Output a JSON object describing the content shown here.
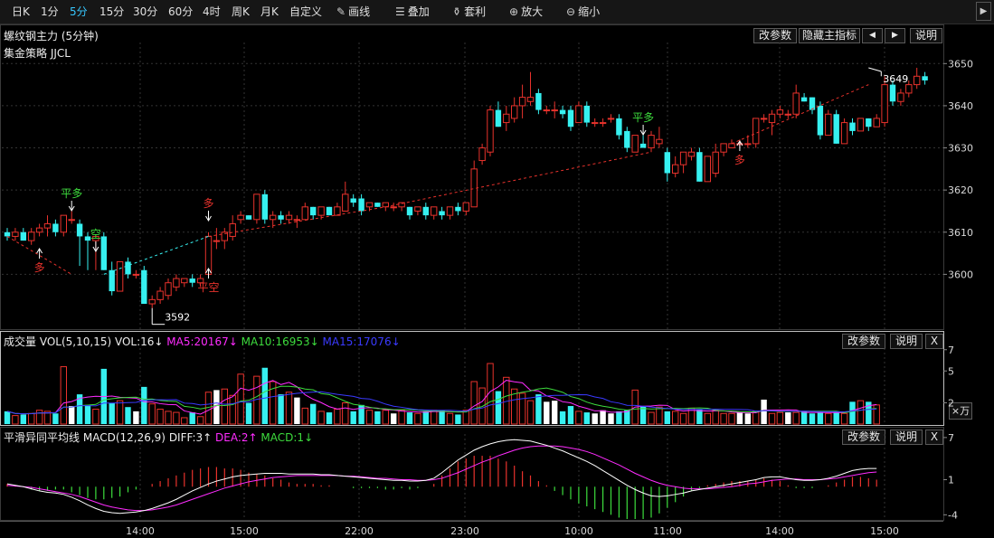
{
  "toolbar": {
    "periods": [
      "日K",
      "1分",
      "5分",
      "15分",
      "30分",
      "60分",
      "4时",
      "周K",
      "月K",
      "自定义"
    ],
    "active_period": "5分",
    "tools": [
      {
        "icon": "pencil-icon",
        "label": "画线"
      },
      {
        "icon": "stack-icon",
        "label": "叠加"
      },
      {
        "icon": "moneybag-icon",
        "label": "套利"
      },
      {
        "icon": "zoom-in-icon",
        "label": "放大"
      },
      {
        "icon": "zoom-out-icon",
        "label": "缩小"
      }
    ],
    "collapse_icon": "triangle-right-icon"
  },
  "main": {
    "title": "螺纹钢主力 (5分钟)",
    "strategy": "集金策略 JJCL",
    "buttons": {
      "params": "改参数",
      "hide_indicator": "隐藏主指标",
      "prev": "◀",
      "next": "▶",
      "help": "说明"
    },
    "price_axis": [
      "3650",
      "3640",
      "3630",
      "3620",
      "3610",
      "3600"
    ],
    "low_marker": "3592",
    "high_marker": "3649",
    "signals": [
      {
        "text": "多",
        "color": "#e8322c"
      },
      {
        "text": "平多",
        "color": "#3ddc3d"
      },
      {
        "text": "空",
        "color": "#3ddc3d"
      },
      {
        "text": "多",
        "color": "#e8322c"
      },
      {
        "text": "平空",
        "color": "#e8322c"
      },
      {
        "text": "平多",
        "color": "#3ddc3d"
      },
      {
        "text": "多",
        "color": "#e8322c"
      }
    ]
  },
  "volume": {
    "title": "成交量",
    "indicator": "VOL(5,10,15)",
    "vol": "VOL:16↓",
    "ma5": "MA5:20167↓",
    "ma10": "MA10:16953↓",
    "ma15": "MA15:17076↓",
    "buttons": {
      "params": "改参数",
      "help": "说明",
      "close": "X"
    },
    "axis": [
      "7",
      "5",
      "2"
    ],
    "unit": "×万"
  },
  "macd": {
    "title": "平滑异同平均线",
    "indicator": "MACD(12,26,9)",
    "diff": "DIFF:3↑",
    "dea": "DEA:2↑",
    "macd": "MACD:1↓",
    "buttons": {
      "params": "改参数",
      "help": "说明",
      "close": "X"
    },
    "axis": [
      "7",
      "1",
      "-4"
    ]
  },
  "time_axis": [
    "14:00",
    "15:00",
    "22:00",
    "23:00",
    "10:00",
    "11:00",
    "14:00",
    "15:00"
  ],
  "colors": {
    "up": "#e8322c",
    "down": "#36f0f0",
    "ma5": "#ff2cff",
    "ma10": "#3ddc3d",
    "ma15": "#3a3aff",
    "diff": "#ffffff",
    "dea": "#ff2cff"
  },
  "chart_data": {
    "type": "candlestick",
    "bars": [
      {
        "o": 3610,
        "h": 3611,
        "l": 3608,
        "c": 3609
      },
      {
        "o": 3609,
        "h": 3611,
        "l": 3608,
        "c": 3610
      },
      {
        "o": 3610,
        "h": 3611,
        "l": 3608,
        "c": 3608
      },
      {
        "o": 3608,
        "h": 3611,
        "l": 3607,
        "c": 3610
      },
      {
        "o": 3610,
        "h": 3612,
        "l": 3609,
        "c": 3611
      },
      {
        "o": 3611,
        "h": 3614,
        "l": 3609,
        "c": 3612
      },
      {
        "o": 3612,
        "h": 3613,
        "l": 3609,
        "c": 3610
      },
      {
        "o": 3610,
        "h": 3614,
        "l": 3609,
        "c": 3614
      },
      {
        "o": 3613,
        "h": 3615,
        "l": 3612,
        "c": 3613
      },
      {
        "o": 3612,
        "h": 3613,
        "l": 3602,
        "c": 3609
      },
      {
        "o": 3609,
        "h": 3610,
        "l": 3601,
        "c": 3608
      },
      {
        "o": 3608,
        "h": 3609,
        "l": 3601,
        "c": 3609
      },
      {
        "o": 3609,
        "h": 3610,
        "l": 3601,
        "c": 3601
      },
      {
        "o": 3601,
        "h": 3603,
        "l": 3595,
        "c": 3596
      },
      {
        "o": 3596,
        "h": 3603,
        "l": 3596,
        "c": 3603
      },
      {
        "o": 3603,
        "h": 3604,
        "l": 3599,
        "c": 3600
      },
      {
        "o": 3600,
        "h": 3601,
        "l": 3599,
        "c": 3600
      },
      {
        "o": 3601,
        "h": 3602,
        "l": 3593,
        "c": 3593
      },
      {
        "o": 3593,
        "h": 3595,
        "l": 3592,
        "c": 3594
      },
      {
        "o": 3594,
        "h": 3597,
        "l": 3593,
        "c": 3596
      },
      {
        "o": 3595,
        "h": 3599,
        "l": 3594,
        "c": 3598
      },
      {
        "o": 3597,
        "h": 3600,
        "l": 3596,
        "c": 3599
      },
      {
        "o": 3598,
        "h": 3599,
        "l": 3597,
        "c": 3599
      },
      {
        "o": 3599,
        "h": 3600,
        "l": 3597,
        "c": 3598
      },
      {
        "o": 3598,
        "h": 3600,
        "l": 3597,
        "c": 3599
      },
      {
        "o": 3600,
        "h": 3610,
        "l": 3599,
        "c": 3609
      },
      {
        "o": 3608,
        "h": 3611,
        "l": 3606,
        "c": 3608
      },
      {
        "o": 3608,
        "h": 3611,
        "l": 3606,
        "c": 3610
      },
      {
        "o": 3609,
        "h": 3614,
        "l": 3608,
        "c": 3612
      },
      {
        "o": 3613,
        "h": 3615,
        "l": 3612,
        "c": 3614
      },
      {
        "o": 3614,
        "h": 3614,
        "l": 3613,
        "c": 3613
      },
      {
        "o": 3613,
        "h": 3619,
        "l": 3612,
        "c": 3619
      },
      {
        "o": 3619,
        "h": 3620,
        "l": 3612,
        "c": 3613
      },
      {
        "o": 3613,
        "h": 3615,
        "l": 3611,
        "c": 3614
      },
      {
        "o": 3614,
        "h": 3615,
        "l": 3612,
        "c": 3613
      },
      {
        "o": 3613,
        "h": 3615,
        "l": 3612,
        "c": 3614
      },
      {
        "o": 3613,
        "h": 3614,
        "l": 3611,
        "c": 3613
      },
      {
        "o": 3613,
        "h": 3617,
        "l": 3613,
        "c": 3616
      },
      {
        "o": 3616,
        "h": 3616,
        "l": 3613,
        "c": 3614
      },
      {
        "o": 3614,
        "h": 3616,
        "l": 3613,
        "c": 3616
      },
      {
        "o": 3616,
        "h": 3616,
        "l": 3614,
        "c": 3614
      },
      {
        "o": 3614,
        "h": 3617,
        "l": 3614,
        "c": 3616
      },
      {
        "o": 3615,
        "h": 3622,
        "l": 3615,
        "c": 3619
      },
      {
        "o": 3618,
        "h": 3619,
        "l": 3616,
        "c": 3617
      },
      {
        "o": 3618,
        "h": 3619,
        "l": 3614,
        "c": 3615
      },
      {
        "o": 3616,
        "h": 3617,
        "l": 3615,
        "c": 3617
      },
      {
        "o": 3617,
        "h": 3617,
        "l": 3616,
        "c": 3616
      },
      {
        "o": 3616,
        "h": 3617,
        "l": 3615,
        "c": 3617
      },
      {
        "o": 3616,
        "h": 3617,
        "l": 3615,
        "c": 3616
      },
      {
        "o": 3616,
        "h": 3617,
        "l": 3615,
        "c": 3617
      },
      {
        "o": 3616,
        "h": 3616,
        "l": 3613,
        "c": 3614
      },
      {
        "o": 3615,
        "h": 3616,
        "l": 3614,
        "c": 3616
      },
      {
        "o": 3616,
        "h": 3617,
        "l": 3613,
        "c": 3614
      },
      {
        "o": 3614,
        "h": 3616,
        "l": 3613,
        "c": 3616
      },
      {
        "o": 3615,
        "h": 3616,
        "l": 3613,
        "c": 3614
      },
      {
        "o": 3614,
        "h": 3616,
        "l": 3613,
        "c": 3616
      },
      {
        "o": 3616,
        "h": 3617,
        "l": 3614,
        "c": 3615
      },
      {
        "o": 3615,
        "h": 3617,
        "l": 3614,
        "c": 3617
      },
      {
        "o": 3616,
        "h": 3627,
        "l": 3616,
        "c": 3625
      },
      {
        "o": 3627,
        "h": 3631,
        "l": 3626,
        "c": 3630
      },
      {
        "o": 3629,
        "h": 3640,
        "l": 3628,
        "c": 3639
      },
      {
        "o": 3639,
        "h": 3641,
        "l": 3635,
        "c": 3635
      },
      {
        "o": 3636,
        "h": 3640,
        "l": 3634,
        "c": 3638
      },
      {
        "o": 3637,
        "h": 3642,
        "l": 3636,
        "c": 3640
      },
      {
        "o": 3640,
        "h": 3645,
        "l": 3637,
        "c": 3642
      },
      {
        "o": 3641,
        "h": 3648,
        "l": 3640,
        "c": 3642
      },
      {
        "o": 3643,
        "h": 3644,
        "l": 3638,
        "c": 3639
      },
      {
        "o": 3639,
        "h": 3640,
        "l": 3638,
        "c": 3639
      },
      {
        "o": 3639,
        "h": 3641,
        "l": 3637,
        "c": 3639
      },
      {
        "o": 3639,
        "h": 3640,
        "l": 3637,
        "c": 3638
      },
      {
        "o": 3639,
        "h": 3640,
        "l": 3634,
        "c": 3635
      },
      {
        "o": 3636,
        "h": 3641,
        "l": 3636,
        "c": 3640
      },
      {
        "o": 3640,
        "h": 3641,
        "l": 3635,
        "c": 3636
      },
      {
        "o": 3636,
        "h": 3637,
        "l": 3635,
        "c": 3636
      },
      {
        "o": 3636,
        "h": 3637,
        "l": 3635,
        "c": 3636
      },
      {
        "o": 3637,
        "h": 3638,
        "l": 3636,
        "c": 3637
      },
      {
        "o": 3637,
        "h": 3638,
        "l": 3632,
        "c": 3633
      },
      {
        "o": 3634,
        "h": 3635,
        "l": 3629,
        "c": 3630
      },
      {
        "o": 3629,
        "h": 3633,
        "l": 3629,
        "c": 3633
      },
      {
        "o": 3631,
        "h": 3633,
        "l": 3630,
        "c": 3630
      },
      {
        "o": 3630,
        "h": 3634,
        "l": 3629,
        "c": 3633
      },
      {
        "o": 3631,
        "h": 3635,
        "l": 3630,
        "c": 3632
      },
      {
        "o": 3629,
        "h": 3630,
        "l": 3622,
        "c": 3624
      },
      {
        "o": 3624,
        "h": 3628,
        "l": 3623,
        "c": 3626
      },
      {
        "o": 3626,
        "h": 3629,
        "l": 3624,
        "c": 3629
      },
      {
        "o": 3628,
        "h": 3630,
        "l": 3627,
        "c": 3629
      },
      {
        "o": 3629,
        "h": 3630,
        "l": 3622,
        "c": 3622
      },
      {
        "o": 3622,
        "h": 3628,
        "l": 3622,
        "c": 3628
      },
      {
        "o": 3624,
        "h": 3631,
        "l": 3623,
        "c": 3629
      },
      {
        "o": 3629,
        "h": 3631,
        "l": 3628,
        "c": 3631
      },
      {
        "o": 3630,
        "h": 3632,
        "l": 3630,
        "c": 3631
      },
      {
        "o": 3631,
        "h": 3632,
        "l": 3630,
        "c": 3631
      },
      {
        "o": 3631,
        "h": 3633,
        "l": 3630,
        "c": 3631
      },
      {
        "o": 3631,
        "h": 3637,
        "l": 3630,
        "c": 3637
      },
      {
        "o": 3637,
        "h": 3638,
        "l": 3636,
        "c": 3637
      },
      {
        "o": 3636,
        "h": 3639,
        "l": 3633,
        "c": 3638
      },
      {
        "o": 3638,
        "h": 3640,
        "l": 3637,
        "c": 3639
      },
      {
        "o": 3638,
        "h": 3639,
        "l": 3637,
        "c": 3638
      },
      {
        "o": 3638,
        "h": 3645,
        "l": 3637,
        "c": 3643
      },
      {
        "o": 3642,
        "h": 3643,
        "l": 3641,
        "c": 3641
      },
      {
        "o": 3642,
        "h": 3642,
        "l": 3638,
        "c": 3639
      },
      {
        "o": 3640,
        "h": 3641,
        "l": 3632,
        "c": 3633
      },
      {
        "o": 3633,
        "h": 3639,
        "l": 3633,
        "c": 3638
      },
      {
        "o": 3638,
        "h": 3639,
        "l": 3631,
        "c": 3631
      },
      {
        "o": 3631,
        "h": 3637,
        "l": 3631,
        "c": 3636
      },
      {
        "o": 3636,
        "h": 3637,
        "l": 3633,
        "c": 3634
      },
      {
        "o": 3634,
        "h": 3637,
        "l": 3634,
        "c": 3637
      },
      {
        "o": 3637,
        "h": 3637,
        "l": 3634,
        "c": 3635
      },
      {
        "o": 3635,
        "h": 3638,
        "l": 3635,
        "c": 3637
      },
      {
        "o": 3636,
        "h": 3647,
        "l": 3635,
        "c": 3645
      },
      {
        "o": 3645,
        "h": 3646,
        "l": 3640,
        "c": 3641
      },
      {
        "o": 3641,
        "h": 3644,
        "l": 3640,
        "c": 3643
      },
      {
        "o": 3643,
        "h": 3646,
        "l": 3642,
        "c": 3645
      },
      {
        "o": 3645,
        "h": 3649,
        "l": 3644,
        "c": 3647
      },
      {
        "o": 3647,
        "h": 3648,
        "l": 3645,
        "c": 3646
      }
    ],
    "volume": [
      1.2,
      0.8,
      0.9,
      1.0,
      1.3,
      1.2,
      1.0,
      5.4,
      1.7,
      2.8,
      1.8,
      1.4,
      5.2,
      2.0,
      2.2,
      1.6,
      1.2,
      3.5,
      1.9,
      1.4,
      1.2,
      1.1,
      0.6,
      1.1,
      0.7,
      3.0,
      3.2,
      3.3,
      2.7,
      4.7,
      2.0,
      4.5,
      5.3,
      4.0,
      2.8,
      3.0,
      2.5,
      1.5,
      1.9,
      1.2,
      1.1,
      1.4,
      2.0,
      1.2,
      1.8,
      1.3,
      1.2,
      1.3,
      1.0,
      1.3,
      1.1,
      1.0,
      1.2,
      1.3,
      1.3,
      1.0,
      0.9,
      1.3,
      4.0,
      3.4,
      5.7,
      3.1,
      4.4,
      3.3,
      2.9,
      2.2,
      2.8,
      2.1,
      2.2,
      1.2,
      1.7,
      1.2,
      1.1,
      1.0,
      1.3,
      1.0,
      1.2,
      1.3,
      3.2,
      1.7,
      1.1,
      1.6,
      1.2,
      1.2,
      1.0,
      1.5,
      1.4,
      1.0,
      1.3,
      1.0,
      1.0,
      1.1,
      1.0,
      1.2,
      2.3,
      1.0,
      1.1,
      1.1,
      1.1,
      1.2,
      1.0,
      1.1,
      1.0,
      1.2,
      1.0,
      2.1,
      2.2,
      2.1,
      1.8
    ],
    "diff": [
      0.4,
      0.2,
      0.0,
      -0.3,
      -0.6,
      -0.8,
      -0.9,
      -1.1,
      -1.5,
      -2.0,
      -2.6,
      -3.1,
      -3.5,
      -3.7,
      -3.8,
      -3.7,
      -3.6,
      -3.4,
      -3.1,
      -2.7,
      -2.3,
      -1.8,
      -1.2,
      -0.6,
      -0.1,
      0.4,
      0.8,
      1.1,
      1.4,
      1.6,
      1.7,
      1.8,
      1.9,
      1.9,
      1.9,
      1.8,
      1.8,
      1.8,
      1.8,
      1.7,
      1.7,
      1.6,
      1.5,
      1.4,
      1.3,
      1.2,
      1.1,
      1.0,
      0.9,
      0.9,
      0.8,
      0.8,
      0.9,
      1.2,
      2.0,
      2.9,
      3.8,
      4.5,
      5.2,
      5.7,
      6.1,
      6.4,
      6.6,
      6.7,
      6.6,
      6.5,
      6.2,
      5.9,
      5.5,
      5.1,
      4.6,
      4.1,
      3.6,
      3.0,
      2.3,
      1.6,
      0.9,
      0.2,
      -0.4,
      -0.9,
      -1.3,
      -1.4,
      -1.3,
      -1.1,
      -0.9,
      -0.6,
      -0.4,
      -0.2,
      0.0,
      0.2,
      0.4,
      0.6,
      0.8,
      1.0,
      1.3,
      1.4,
      1.4,
      1.2,
      1.0,
      0.9,
      0.9,
      1.0,
      1.2,
      1.5,
      1.9,
      2.3,
      2.5,
      2.6,
      2.6
    ],
    "dea": [
      0.2,
      0.1,
      0.0,
      -0.1,
      -0.3,
      -0.5,
      -0.7,
      -0.9,
      -1.1,
      -1.4,
      -1.8,
      -2.2,
      -2.6,
      -2.9,
      -3.1,
      -3.3,
      -3.4,
      -3.4,
      -3.3,
      -3.1,
      -2.9,
      -2.6,
      -2.2,
      -1.8,
      -1.4,
      -1.0,
      -0.6,
      -0.2,
      0.1,
      0.4,
      0.7,
      0.9,
      1.1,
      1.3,
      1.4,
      1.5,
      1.6,
      1.6,
      1.6,
      1.6,
      1.6,
      1.6,
      1.5,
      1.5,
      1.4,
      1.3,
      1.2,
      1.2,
      1.1,
      1.0,
      1.0,
      0.9,
      0.9,
      1.0,
      1.2,
      1.6,
      2.0,
      2.5,
      3.0,
      3.5,
      3.9,
      4.4,
      4.8,
      5.2,
      5.5,
      5.7,
      5.8,
      5.8,
      5.8,
      5.7,
      5.5,
      5.3,
      5.0,
      4.6,
      4.1,
      3.6,
      3.1,
      2.5,
      1.9,
      1.4,
      0.9,
      0.5,
      0.2,
      0.0,
      -0.2,
      -0.3,
      -0.3,
      -0.3,
      -0.2,
      -0.1,
      0.0,
      0.2,
      0.4,
      0.5,
      0.7,
      0.9,
      1.0,
      1.1,
      1.1,
      1.0,
      1.0,
      1.0,
      1.1,
      1.2,
      1.4,
      1.6,
      1.8,
      2.0,
      2.1
    ]
  }
}
